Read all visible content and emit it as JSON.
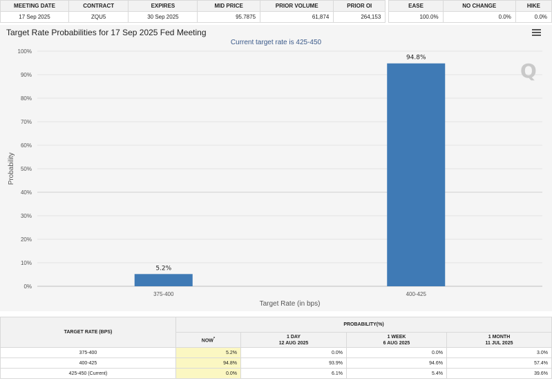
{
  "meeting_table": {
    "headers": [
      "MEETING DATE",
      "CONTRACT",
      "EXPIRES",
      "MID PRICE",
      "PRIOR VOLUME",
      "PRIOR OI",
      "EASE",
      "NO CHANGE",
      "HIKE"
    ],
    "row": {
      "meeting_date": "17 Sep 2025",
      "contract": "ZQU5",
      "expires": "30 Sep 2025",
      "mid_price": "95.7875",
      "prior_volume": "61,874",
      "prior_oi": "264,153",
      "ease": "100.0%",
      "no_change": "0.0%",
      "hike": "0.0%"
    }
  },
  "chart": {
    "title": "Target Rate Probabilities for 17 Sep 2025 Fed Meeting",
    "subtitle": "Current target rate is 425-450",
    "watermark": "Q",
    "menu_icon": "hamburger-menu-icon"
  },
  "chart_data": {
    "type": "bar",
    "title": "Target Rate Probabilities for 17 Sep 2025 Fed Meeting",
    "subtitle": "Current target rate is 425-450",
    "categories": [
      "375-400",
      "400-425"
    ],
    "values": [
      5.2,
      94.8
    ],
    "data_labels": [
      "5.2%",
      "94.8%"
    ],
    "xlabel": "Target Rate (in bps)",
    "ylabel": "Probability",
    "ylim": [
      0,
      100
    ],
    "yticks": [
      "0%",
      "10%",
      "20%",
      "30%",
      "40%",
      "50%",
      "60%",
      "70%",
      "80%",
      "90%",
      "100%"
    ],
    "bar_color": "#3f7ab5",
    "grid": true
  },
  "probability_table": {
    "rate_header": "TARGET RATE (BPS)",
    "prob_header": "PROBABILITY(%)",
    "columns": [
      {
        "label": "NOW",
        "marker": "*",
        "sub": ""
      },
      {
        "label": "1 DAY",
        "sub": "12 AUG 2025"
      },
      {
        "label": "1 WEEK",
        "sub": "6 AUG 2025"
      },
      {
        "label": "1 MONTH",
        "sub": "11 JUL 2025"
      }
    ],
    "rows": [
      {
        "rate": "375-400",
        "now": "5.2%",
        "day": "0.0%",
        "week": "0.0%",
        "month": "3.0%"
      },
      {
        "rate": "400-425",
        "now": "94.8%",
        "day": "93.9%",
        "week": "94.6%",
        "month": "57.4%"
      },
      {
        "rate": "425-450 (Current)",
        "now": "0.0%",
        "day": "6.1%",
        "week": "5.4%",
        "month": "39.6%"
      }
    ]
  }
}
